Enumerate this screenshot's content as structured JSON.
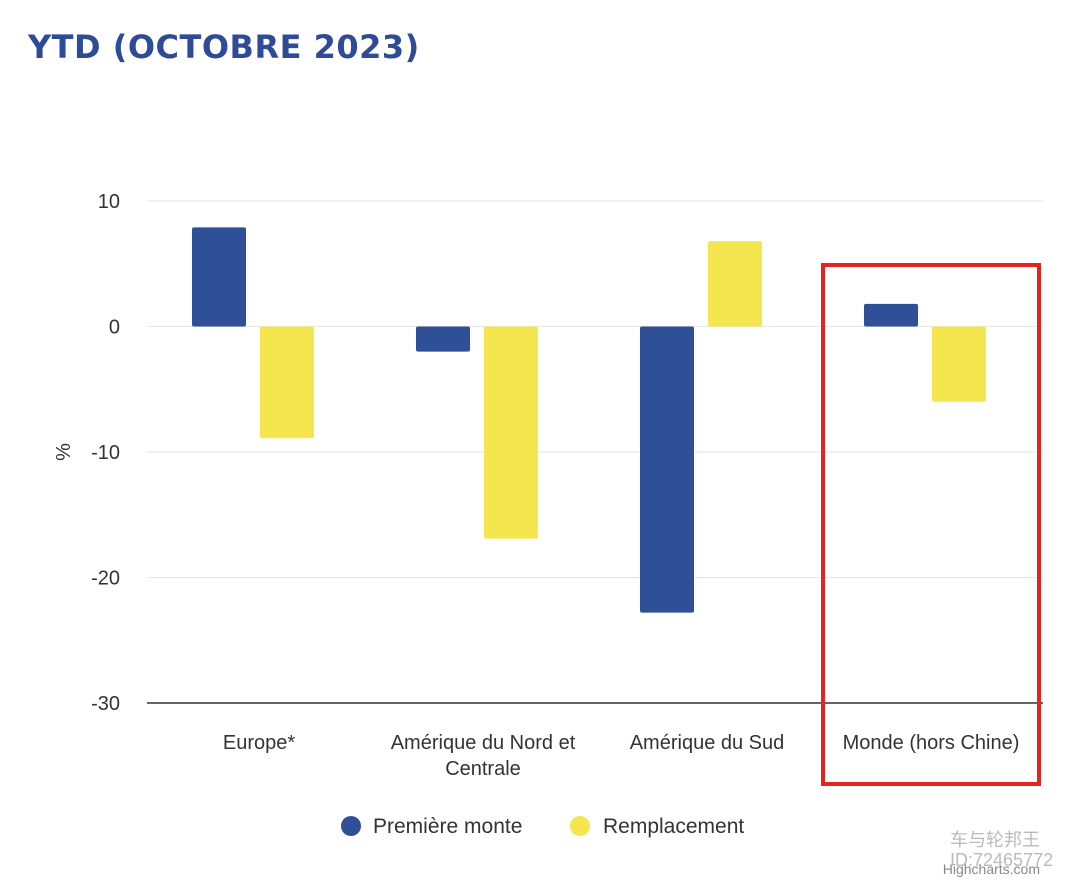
{
  "title": "YTD (OCTOBRE 2023)",
  "chart_data": {
    "type": "bar",
    "title": "YTD (OCTOBRE 2023)",
    "ylabel": "%",
    "ylim": [
      -30,
      10
    ],
    "yticks": [
      10,
      0,
      -10,
      -20,
      -30
    ],
    "grid": true,
    "legend_position": "bottom-center",
    "categories": [
      "Europe*",
      "Amérique du Nord et Centrale",
      "Amérique du Sud",
      "Monde (hors Chine)"
    ],
    "category_lines": [
      [
        "Europe*"
      ],
      [
        "Amérique du Nord et",
        "Centrale"
      ],
      [
        "Amérique du Sud"
      ],
      [
        "Monde (hors Chine)"
      ]
    ],
    "series": [
      {
        "name": "Première monte",
        "color": "#2f4f96",
        "values": [
          7.9,
          -2.0,
          -22.8,
          1.8
        ]
      },
      {
        "name": "Remplacement",
        "color": "#f5e54f",
        "values": [
          -8.9,
          -16.9,
          6.8,
          -6.0
        ]
      }
    ],
    "highlight": {
      "category_index": 3,
      "color": "#e8231f"
    }
  },
  "credit": "Highcharts.com",
  "watermark": {
    "line1": "车与轮邦王",
    "line2": "ID:72465772"
  }
}
